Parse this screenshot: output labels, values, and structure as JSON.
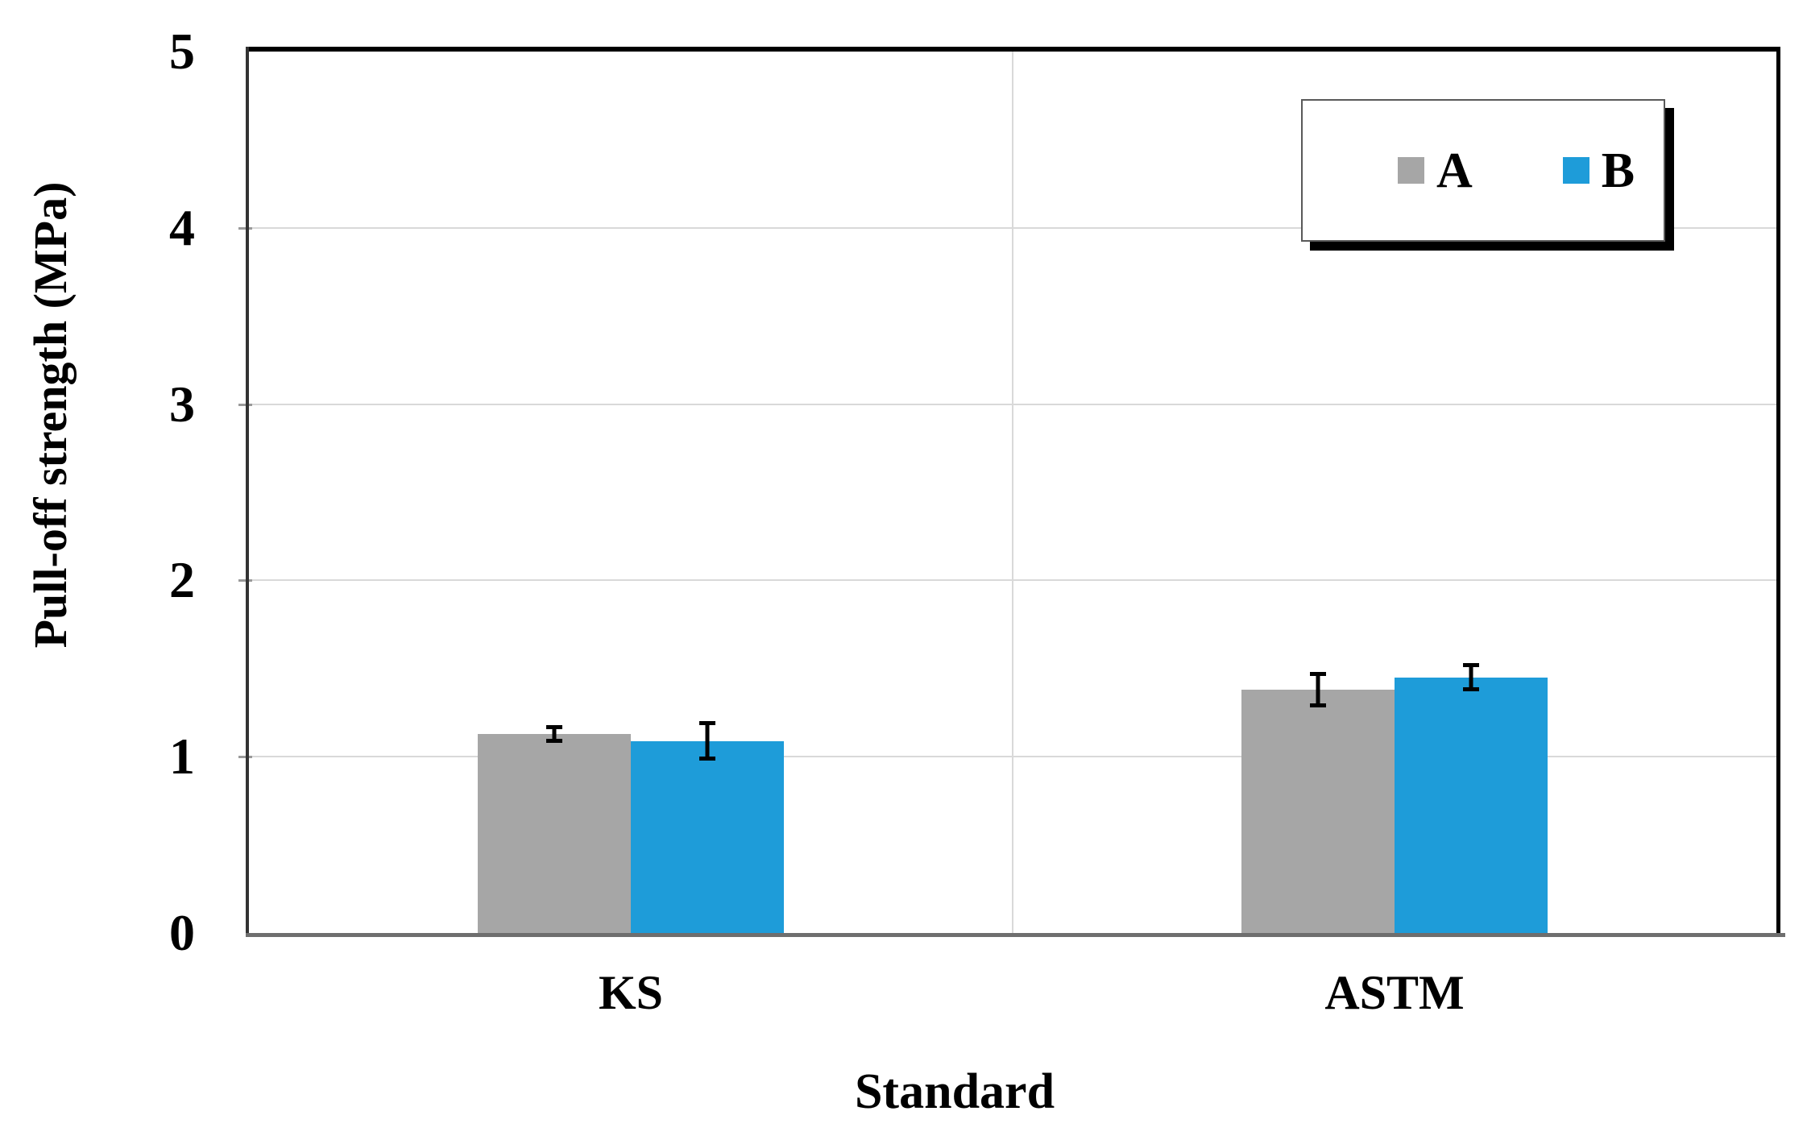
{
  "figure": {
    "background": "#ffffff"
  },
  "chart_data": {
    "type": "bar",
    "title": "",
    "xlabel": "Standard",
    "ylabel": "Pull-off strength (MPa)",
    "categories": [
      "KS",
      "ASTM"
    ],
    "series": [
      {
        "name": "A",
        "color": "#a6a6a6",
        "values": [
          1.13,
          1.38
        ],
        "error_bars": [
          0.05,
          0.1
        ]
      },
      {
        "name": "B",
        "color": "#1e9cd9",
        "values": [
          1.09,
          1.45
        ],
        "error_bars": [
          0.11,
          0.08
        ]
      }
    ],
    "ylim": [
      0,
      5
    ],
    "yticks": [
      0,
      1,
      2,
      3,
      4,
      5
    ],
    "grid": {
      "horizontal_major": true,
      "vertical_category_separator": true
    },
    "legend_position": "top-right-inside",
    "legend_entries": [
      "A",
      "B"
    ]
  },
  "colors": {
    "gridline": "#d9d9d9",
    "axis_left": "#333333",
    "axis_bottom": "#6e6e6e",
    "border_top": "#000000",
    "border_right": "#000000",
    "error_bar": "#000000",
    "text": "#000000",
    "legend_border": "#595959",
    "legend_shadow": "#000000"
  }
}
